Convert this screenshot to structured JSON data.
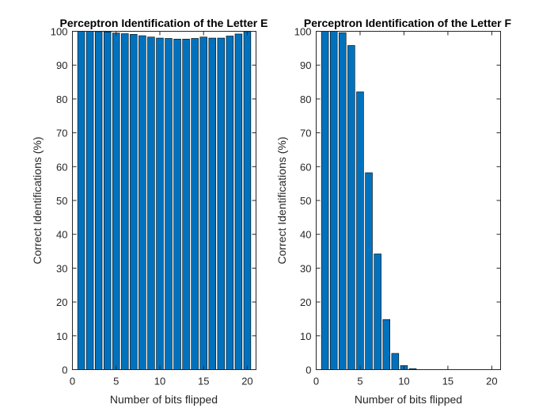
{
  "chart_data": [
    {
      "type": "bar",
      "title": "Perceptron Identification of the Letter E",
      "xlabel": "Number of bits flipped",
      "ylabel": "Correct Identifications (%)",
      "xlim": [
        0,
        21
      ],
      "ylim": [
        0,
        100
      ],
      "xticks": [
        0,
        5,
        10,
        15,
        20
      ],
      "yticks": [
        0,
        10,
        20,
        30,
        40,
        50,
        60,
        70,
        80,
        90,
        100
      ],
      "bar_color": "#0072BD",
      "x": [
        1,
        2,
        3,
        4,
        5,
        6,
        7,
        8,
        9,
        10,
        11,
        12,
        13,
        14,
        15,
        16,
        17,
        18,
        19,
        20
      ],
      "values": [
        100,
        100,
        99.9,
        99.8,
        99.5,
        99.3,
        99.1,
        98.7,
        98.3,
        98.0,
        97.9,
        97.7,
        97.7,
        97.9,
        98.3,
        98.0,
        98.0,
        98.6,
        99.2,
        99.9
      ]
    },
    {
      "type": "bar",
      "title": "Perceptron Identification of the Letter F",
      "xlabel": "Number of bits flipped",
      "ylabel": "Correct Identifications (%)",
      "xlim": [
        0,
        21
      ],
      "ylim": [
        0,
        100
      ],
      "xticks": [
        0,
        5,
        10,
        15,
        20
      ],
      "yticks": [
        0,
        10,
        20,
        30,
        40,
        50,
        60,
        70,
        80,
        90,
        100
      ],
      "bar_color": "#0072BD",
      "x": [
        1,
        2,
        3,
        4,
        5,
        6,
        7,
        8,
        9,
        10,
        11,
        12,
        13,
        14,
        15,
        16,
        17,
        18,
        19,
        20
      ],
      "values": [
        100,
        100,
        99.6,
        95.8,
        82.1,
        58.2,
        34.2,
        14.8,
        4.8,
        1.2,
        0.3,
        0,
        0,
        0,
        0,
        0,
        0,
        0,
        0,
        0
      ]
    }
  ]
}
